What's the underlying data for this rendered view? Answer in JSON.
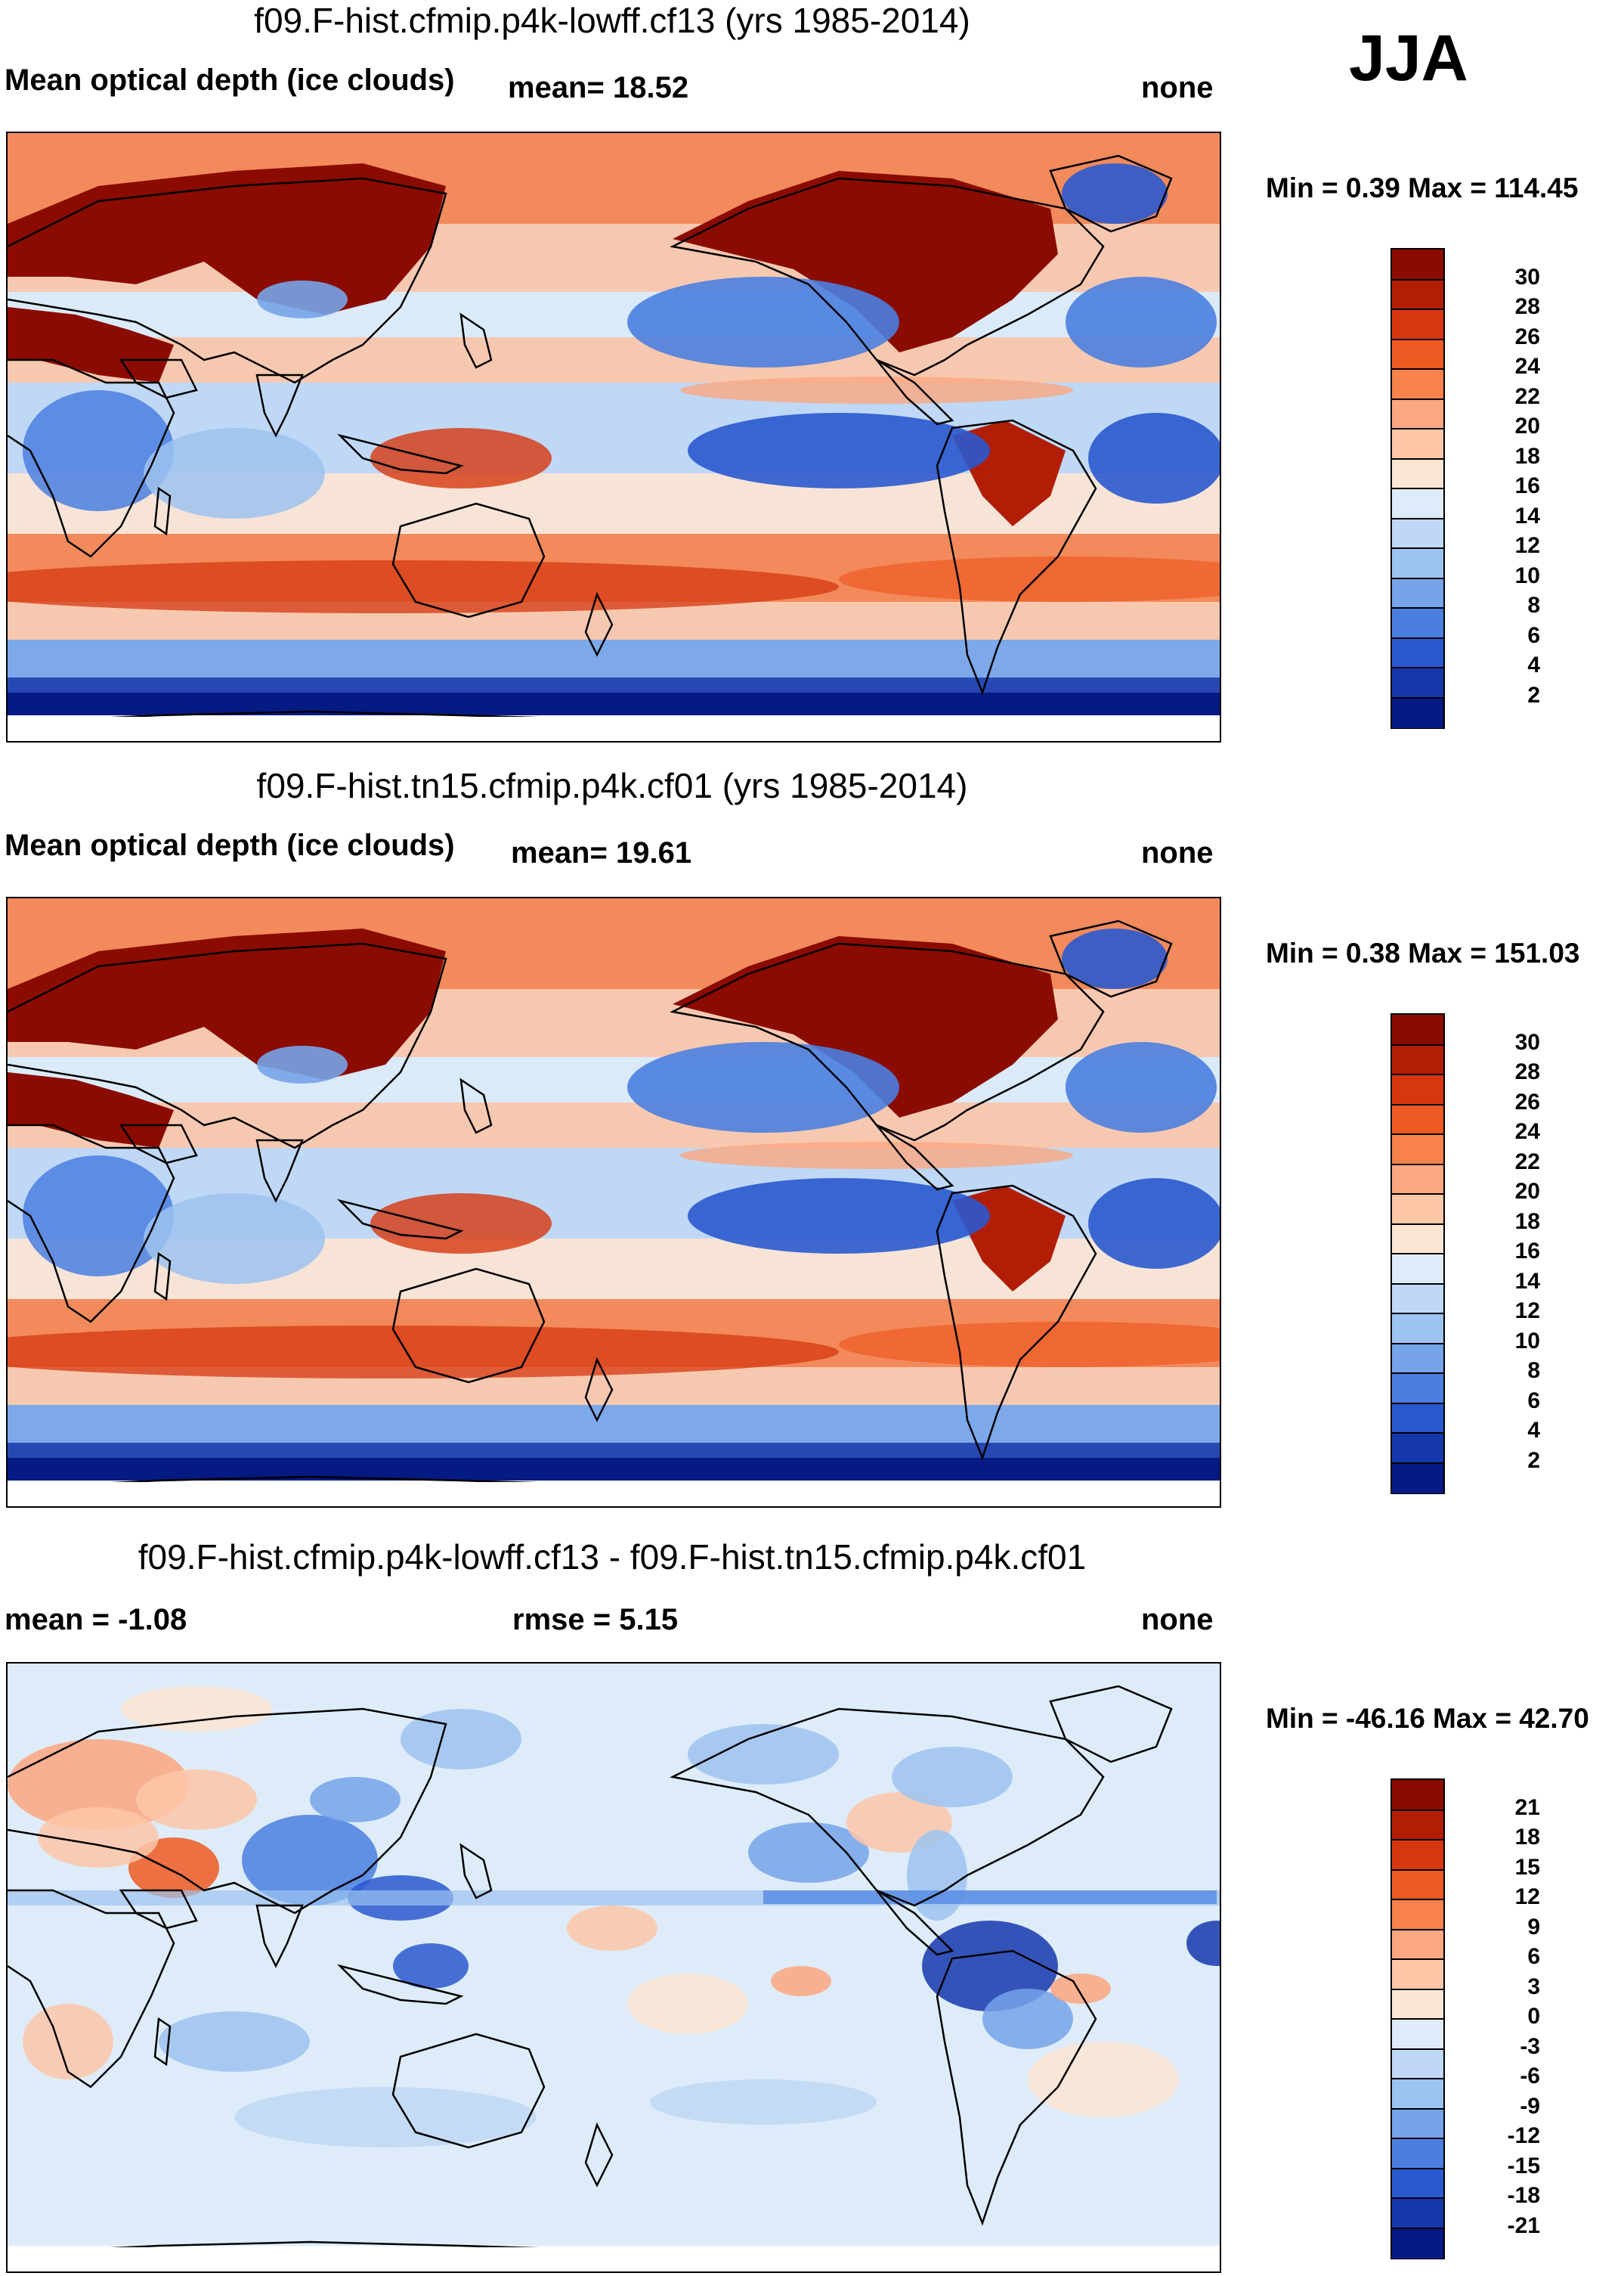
{
  "season": "JJA",
  "panels": [
    {
      "title": "f09.F-hist.cfmip.p4k-lowff.cf13 (yrs 1985-2014)",
      "left_text": "Mean optical depth (ice clouds)",
      "mid_text": "mean=  18.52",
      "right_text": "none",
      "minmax": "Min =   0.39 Max = 114.45",
      "map_name": "model1-map"
    },
    {
      "title": "f09.F-hist.tn15.cfmip.p4k.cf01 (yrs 1985-2014)",
      "left_text": "Mean optical depth (ice clouds)",
      "mid_text": "mean=  19.61",
      "right_text": "none",
      "minmax": "Min =   0.38 Max = 151.03",
      "map_name": "model2-map"
    },
    {
      "title": "f09.F-hist.cfmip.p4k-lowff.cf13 - f09.F-hist.tn15.cfmip.p4k.cf01",
      "left_text": "mean =  -1.08",
      "mid_text": "rmse =   5.15",
      "right_text": "none",
      "minmax": "Min = -46.16 Max =  42.70",
      "map_name": "difference-map"
    }
  ],
  "colorbars": {
    "abs_labels": [
      "30",
      "28",
      "26",
      "24",
      "22",
      "20",
      "18",
      "16",
      "14",
      "12",
      "10",
      "8",
      "6",
      "4",
      "2"
    ],
    "abs_colors": [
      "#8b0b00",
      "#b21d06",
      "#d6370f",
      "#ef5a22",
      "#f7824a",
      "#fba77f",
      "#fdc7a8",
      "#fde5d4",
      "#deecf9",
      "#bfd8f5",
      "#9dc3f0",
      "#75a4e9",
      "#4a7fe0",
      "#2a59cf",
      "#1638ad",
      "#051a83"
    ],
    "diff_labels": [
      "21",
      "18",
      "15",
      "12",
      "9",
      "6",
      "3",
      "0",
      "-3",
      "-6",
      "-9",
      "-12",
      "-15",
      "-18",
      "-21"
    ],
    "diff_colors": [
      "#8b0b00",
      "#b21d06",
      "#d6370f",
      "#ef5a22",
      "#f7824a",
      "#fba77f",
      "#fdc7a8",
      "#fde5d4",
      "#deecf9",
      "#bfd8f5",
      "#9dc3f0",
      "#75a4e9",
      "#4a7fe0",
      "#2a59cf",
      "#1638ad",
      "#051a83"
    ]
  }
}
